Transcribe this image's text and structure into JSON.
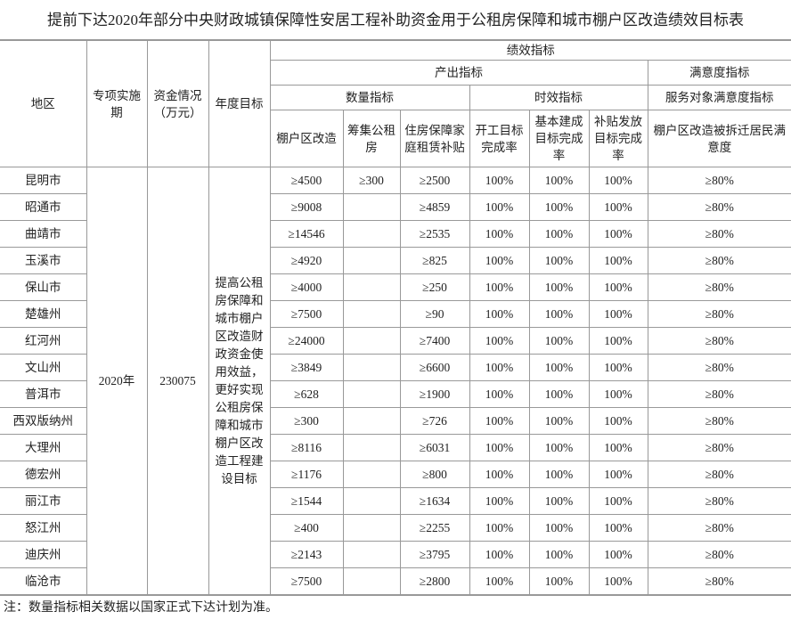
{
  "title": "提前下达2020年部分中央财政城镇保障性安居工程补助资金用于公租房保障和城市棚户区改造绩效目标表",
  "header": {
    "region": "地区",
    "period": "专项实施期",
    "funds": "资金情况（万元）",
    "annual_target": "年度目标",
    "performance": "绩效指标",
    "output": "产出指标",
    "satisfaction_group": "满意度指标",
    "quantity": "数量指标",
    "timeliness": "时效指标",
    "service_satisfaction": "服务对象满意度指标",
    "columns": [
      "棚户区改造",
      "筹集公租房",
      "住房保障家庭租赁补贴",
      "开工目标完成率",
      "基本建成目标完成率",
      "补贴发放目标完成率",
      "棚户区改造被拆迁居民满意度"
    ]
  },
  "table": {
    "period": "2020年",
    "funds": "230075",
    "target": "提高公租房保障和城市棚户区改造财政资金使用效益，更好实现公租房保障和城市棚户区改造工程建设目标",
    "rows": [
      {
        "region": "昆明市",
        "shantytown": "≥4500",
        "public_housing": "≥300",
        "subsidy": "≥2500",
        "start_rate": "100%",
        "completion_rate": "100%",
        "payment_rate": "100%",
        "satisfaction": "≥80%"
      },
      {
        "region": "昭通市",
        "shantytown": "≥9008",
        "subsidy": "≥4859",
        "start_rate": "100%",
        "completion_rate": "100%",
        "payment_rate": "100%",
        "satisfaction": "≥80%"
      },
      {
        "region": "曲靖市",
        "shantytown": "≥14546",
        "subsidy": "≥2535",
        "start_rate": "100%",
        "completion_rate": "100%",
        "payment_rate": "100%",
        "satisfaction": "≥80%"
      },
      {
        "region": "玉溪市",
        "shantytown": "≥4920",
        "subsidy": "≥825",
        "start_rate": "100%",
        "completion_rate": "100%",
        "payment_rate": "100%",
        "satisfaction": "≥80%"
      },
      {
        "region": "保山市",
        "shantytown": "≥4000",
        "subsidy": "≥250",
        "start_rate": "100%",
        "completion_rate": "100%",
        "payment_rate": "100%",
        "satisfaction": "≥80%"
      },
      {
        "region": "楚雄州",
        "shantytown": "≥7500",
        "subsidy": "≥90",
        "start_rate": "100%",
        "completion_rate": "100%",
        "payment_rate": "100%",
        "satisfaction": "≥80%"
      },
      {
        "region": "红河州",
        "shantytown": "≥24000",
        "subsidy": "≥7400",
        "start_rate": "100%",
        "completion_rate": "100%",
        "payment_rate": "100%",
        "satisfaction": "≥80%"
      },
      {
        "region": "文山州",
        "shantytown": "≥3849",
        "subsidy": "≥6600",
        "start_rate": "100%",
        "completion_rate": "100%",
        "payment_rate": "100%",
        "satisfaction": "≥80%"
      },
      {
        "region": "普洱市",
        "shantytown": "≥628",
        "subsidy": "≥1900",
        "start_rate": "100%",
        "completion_rate": "100%",
        "payment_rate": "100%",
        "satisfaction": "≥80%"
      },
      {
        "region": "西双版纳州",
        "shantytown": "≥300",
        "subsidy": "≥726",
        "start_rate": "100%",
        "completion_rate": "100%",
        "payment_rate": "100%",
        "satisfaction": "≥80%"
      },
      {
        "region": "大理州",
        "shantytown": "≥8116",
        "subsidy": "≥6031",
        "start_rate": "100%",
        "completion_rate": "100%",
        "payment_rate": "100%",
        "satisfaction": "≥80%"
      },
      {
        "region": "德宏州",
        "shantytown": "≥1176",
        "subsidy": "≥800",
        "start_rate": "100%",
        "completion_rate": "100%",
        "payment_rate": "100%",
        "satisfaction": "≥80%"
      },
      {
        "region": "丽江市",
        "shantytown": "≥1544",
        "subsidy": "≥1634",
        "start_rate": "100%",
        "completion_rate": "100%",
        "payment_rate": "100%",
        "satisfaction": "≥80%"
      },
      {
        "region": "怒江州",
        "shantytown": "≥400",
        "subsidy": "≥2255",
        "start_rate": "100%",
        "completion_rate": "100%",
        "payment_rate": "100%",
        "satisfaction": "≥80%"
      },
      {
        "region": "迪庆州",
        "shantytown": "≥2143",
        "subsidy": "≥3795",
        "start_rate": "100%",
        "completion_rate": "100%",
        "payment_rate": "100%",
        "satisfaction": "≥80%"
      },
      {
        "region": "临沧市",
        "shantytown": "≥7500",
        "subsidy": "≥2800",
        "start_rate": "100%",
        "completion_rate": "100%",
        "payment_rate": "100%",
        "satisfaction": "≥80%"
      }
    ]
  },
  "note": "注：数量指标相关数据以国家正式下达计划为准。"
}
